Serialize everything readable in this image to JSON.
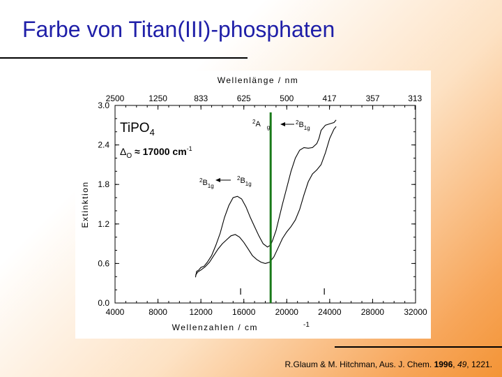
{
  "slide": {
    "title": "Farbe von Titan(III)-phosphaten",
    "citation": {
      "prefix": "R.Glaum & M. Hitchman, Aus. J. Chem. ",
      "year": "1996",
      "sep1": ", ",
      "volume": "49",
      "sep2": ", 1221."
    }
  },
  "chart_data": {
    "type": "line",
    "xlabel": "Wellenzahlen / cm",
    "xlabel_sup": "-1",
    "x2label": "Wellenlänge / nm",
    "ylabel": "Extinktion",
    "xlim": [
      4000,
      32000
    ],
    "ylim": [
      0.0,
      3.0
    ],
    "x_ticks": [
      4000,
      8000,
      12000,
      16000,
      20000,
      24000,
      28000,
      32000
    ],
    "y_ticks": [
      0.0,
      0.6,
      1.2,
      1.8,
      2.4,
      3.0
    ],
    "y_tick_labels": [
      "0.0",
      "0.6",
      "1.2",
      "1.8",
      "2.4",
      "3.0"
    ],
    "top_ticks": [
      {
        "label": "2500",
        "nm": 2500
      },
      {
        "label": "1250",
        "nm": 1250
      },
      {
        "label": "833",
        "nm": 833
      },
      {
        "label": "625",
        "nm": 625
      },
      {
        "label": "500",
        "nm": 500
      },
      {
        "label": "417",
        "nm": 417
      },
      {
        "label": "357",
        "nm": 357
      },
      {
        "label": "313",
        "nm": 313
      }
    ],
    "series": [
      {
        "x": [
          11500,
          11600,
          11800,
          12000,
          12300,
          12600,
          13000,
          13400,
          13800,
          14200,
          14600,
          15000,
          15400,
          15800,
          16200,
          16600,
          17000,
          17400,
          17800,
          18200,
          18500,
          18700,
          19000,
          19300,
          19600,
          20000,
          20400,
          20800,
          21200,
          21600,
          22000,
          22400,
          22800,
          23000,
          23200,
          23600,
          24000,
          24400,
          24600
        ],
        "values": [
          0.39,
          0.48,
          0.5,
          0.54,
          0.56,
          0.62,
          0.72,
          0.88,
          1.06,
          1.3,
          1.48,
          1.6,
          1.62,
          1.58,
          1.46,
          1.3,
          1.16,
          1.02,
          0.9,
          0.85,
          0.88,
          0.96,
          1.1,
          1.3,
          1.5,
          1.75,
          2.0,
          2.2,
          2.32,
          2.36,
          2.35,
          2.36,
          2.42,
          2.5,
          2.62,
          2.7,
          2.72,
          2.74,
          2.78
        ]
      },
      {
        "x": [
          11500,
          11700,
          12000,
          12400,
          12800,
          13200,
          13600,
          14000,
          14400,
          14800,
          15200,
          15600,
          16000,
          16400,
          16800,
          17200,
          17600,
          18000,
          18400,
          18800,
          19200,
          19600,
          20000,
          20400,
          20800,
          21200,
          21600,
          22000,
          22400,
          22800,
          23200,
          23600,
          24000,
          24400,
          24600
        ],
        "values": [
          0.42,
          0.47,
          0.5,
          0.55,
          0.62,
          0.72,
          0.82,
          0.9,
          0.96,
          1.02,
          1.04,
          1.0,
          0.92,
          0.82,
          0.72,
          0.66,
          0.62,
          0.6,
          0.62,
          0.7,
          0.84,
          0.98,
          1.08,
          1.16,
          1.26,
          1.42,
          1.64,
          1.84,
          1.96,
          2.02,
          2.1,
          2.28,
          2.5,
          2.64,
          2.68
        ]
      }
    ],
    "vline": {
      "x": 18500,
      "color": "#1a7a1a"
    },
    "markers": [
      15700,
      23500
    ],
    "annotations": {
      "compound": "TiPO",
      "compound_sub": "4",
      "delta_symbol": "Δ",
      "delta_sub": "O",
      "delta_text": " ≈ 17000 cm",
      "delta_sup": "-1",
      "label_2A": "A",
      "label_2A_pre": "2",
      "label_2A_sub": "g",
      "label_2B1g": "B",
      "label_2B1g_pre": "2",
      "label_2B1g_sub": "1g"
    },
    "grid": false
  }
}
